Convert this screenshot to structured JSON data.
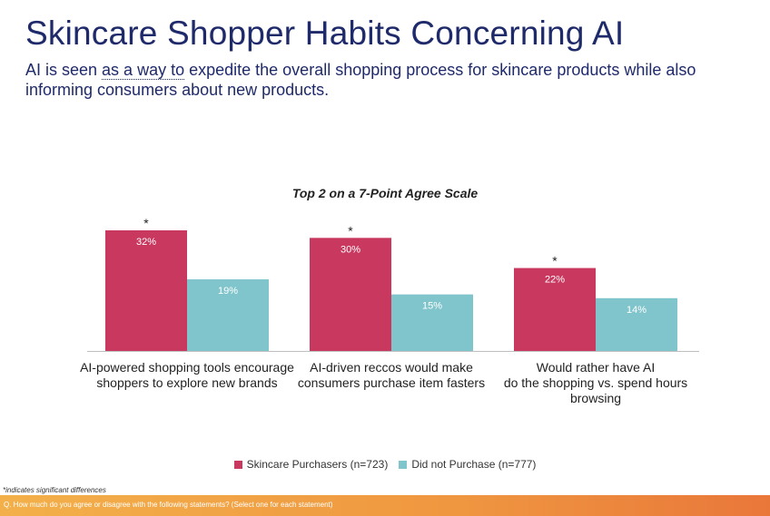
{
  "header": {
    "title": "Skincare Shopper Habits Concerning AI",
    "subtitle_pre": "AI is seen ",
    "subtitle_dotted": "as a way to",
    "subtitle_post": " expedite the overall shopping process for skincare products while also informing consumers about new products."
  },
  "chart_data": {
    "type": "bar",
    "title": "Top 2 on a 7-Point Agree Scale",
    "categories": [
      "AI-powered shopping tools encourage\nshoppers to explore new brands",
      "AI-driven reccos would make\nconsumers purchase item fasters",
      "Would rather have AI\ndo the shopping vs. spend hours\nbrowsing"
    ],
    "series": [
      {
        "name": "Skincare Purchasers (n=723)",
        "values": [
          32,
          30,
          22
        ],
        "labels": [
          "32%",
          "30%",
          "22%"
        ],
        "color": "#c8385f"
      },
      {
        "name": "Did not Purchase (n=777)",
        "values": [
          19,
          15,
          14
        ],
        "labels": [
          "19%",
          "15%",
          "14%"
        ],
        "color": "#80c5cc"
      }
    ],
    "significance_marker": "*",
    "significant": [
      true,
      true,
      true
    ],
    "ylim": [
      0,
      32
    ],
    "grid": false,
    "legend_position": "bottom"
  },
  "footnote": "*indicates significant differences",
  "footer": {
    "question": "Q. How much do you agree or disagree with the following statements? (Select one for each statement)"
  }
}
